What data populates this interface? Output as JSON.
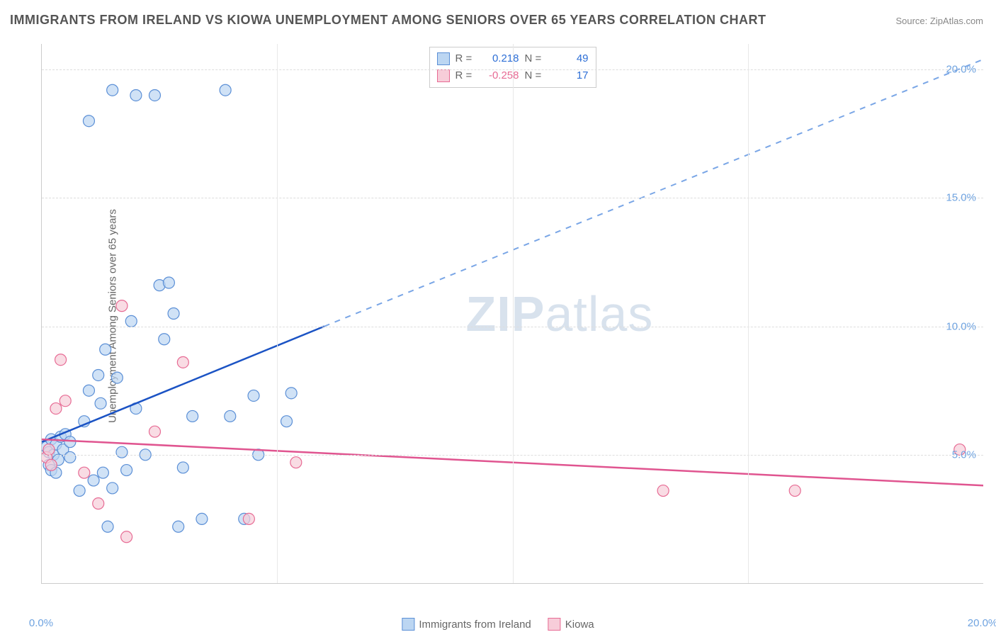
{
  "title": "IMMIGRANTS FROM IRELAND VS KIOWA UNEMPLOYMENT AMONG SENIORS OVER 65 YEARS CORRELATION CHART",
  "source": "Source: ZipAtlas.com",
  "ylabel": "Unemployment Among Seniors over 65 years",
  "watermark_bold": "ZIP",
  "watermark_rest": "atlas",
  "chart": {
    "type": "scatter",
    "xlim": [
      0,
      20
    ],
    "ylim": [
      0,
      21
    ],
    "x_ticks": [
      0.0,
      20.0
    ],
    "x_tick_labels": [
      "0.0%",
      "20.0%"
    ],
    "y_ticks": [
      5.0,
      10.0,
      15.0,
      20.0
    ],
    "y_tick_labels": [
      "5.0%",
      "10.0%",
      "15.0%",
      "20.0%"
    ],
    "v_grid_ticks": [
      5.0,
      10.0,
      15.0
    ],
    "background_color": "#ffffff",
    "grid_color": "#dddddd",
    "axis_color": "#cccccc",
    "tick_label_color": "#6fa3e0",
    "marker_radius": 8,
    "series": [
      {
        "id": "ireland",
        "label": "Immigrants from Ireland",
        "fill": "#bcd6f2",
        "stroke": "#5b8fd6",
        "r_label": "R =",
        "r_value": "0.218",
        "n_label": "N =",
        "n_value": "49",
        "r_color": "#2e6fd6",
        "n_color": "#2e6fd6",
        "trend": {
          "color": "#1b53c4",
          "dash_color": "#7aa6e6",
          "x1": 0,
          "y1": 5.5,
          "x2": 6.0,
          "y2": 10.0,
          "x3": 20.0,
          "y3": 20.4
        },
        "points": [
          {
            "x": 0.1,
            "y": 5.3
          },
          {
            "x": 0.15,
            "y": 5.1
          },
          {
            "x": 0.2,
            "y": 5.6
          },
          {
            "x": 0.25,
            "y": 5.0
          },
          {
            "x": 0.3,
            "y": 5.4
          },
          {
            "x": 0.35,
            "y": 4.8
          },
          {
            "x": 0.4,
            "y": 5.7
          },
          {
            "x": 0.15,
            "y": 4.6
          },
          {
            "x": 0.45,
            "y": 5.2
          },
          {
            "x": 0.5,
            "y": 5.8
          },
          {
            "x": 0.2,
            "y": 4.4
          },
          {
            "x": 0.6,
            "y": 5.5
          },
          {
            "x": 0.8,
            "y": 3.6
          },
          {
            "x": 0.9,
            "y": 6.3
          },
          {
            "x": 1.0,
            "y": 7.5
          },
          {
            "x": 1.1,
            "y": 4.0
          },
          {
            "x": 1.2,
            "y": 8.1
          },
          {
            "x": 1.25,
            "y": 7.0
          },
          {
            "x": 1.3,
            "y": 4.3
          },
          {
            "x": 1.35,
            "y": 9.1
          },
          {
            "x": 1.4,
            "y": 2.2
          },
          {
            "x": 1.5,
            "y": 3.7
          },
          {
            "x": 1.6,
            "y": 8.0
          },
          {
            "x": 1.7,
            "y": 5.1
          },
          {
            "x": 1.8,
            "y": 4.4
          },
          {
            "x": 1.9,
            "y": 10.2
          },
          {
            "x": 2.0,
            "y": 6.8
          },
          {
            "x": 2.2,
            "y": 5.0
          },
          {
            "x": 1.0,
            "y": 18.0
          },
          {
            "x": 1.5,
            "y": 19.2
          },
          {
            "x": 2.4,
            "y": 19.0
          },
          {
            "x": 2.5,
            "y": 11.6
          },
          {
            "x": 2.6,
            "y": 9.5
          },
          {
            "x": 2.7,
            "y": 11.7
          },
          {
            "x": 2.8,
            "y": 10.5
          },
          {
            "x": 2.9,
            "y": 2.2
          },
          {
            "x": 3.0,
            "y": 4.5
          },
          {
            "x": 3.2,
            "y": 6.5
          },
          {
            "x": 3.4,
            "y": 2.5
          },
          {
            "x": 3.9,
            "y": 19.2
          },
          {
            "x": 4.0,
            "y": 6.5
          },
          {
            "x": 4.3,
            "y": 2.5
          },
          {
            "x": 4.5,
            "y": 7.3
          },
          {
            "x": 4.6,
            "y": 5.0
          },
          {
            "x": 5.2,
            "y": 6.3
          },
          {
            "x": 5.3,
            "y": 7.4
          },
          {
            "x": 2.0,
            "y": 19.0
          },
          {
            "x": 0.6,
            "y": 4.9
          },
          {
            "x": 0.3,
            "y": 4.3
          }
        ]
      },
      {
        "id": "kiowa",
        "label": "Kiowa",
        "fill": "#f7cdd9",
        "stroke": "#e76b94",
        "r_label": "R =",
        "r_value": "-0.258",
        "n_label": "N =",
        "n_value": "17",
        "r_color": "#e76b94",
        "n_color": "#2e6fd6",
        "trend": {
          "color": "#e05590",
          "x1": 0,
          "y1": 5.6,
          "x2": 20.0,
          "y2": 3.8
        },
        "points": [
          {
            "x": 0.1,
            "y": 4.9
          },
          {
            "x": 0.15,
            "y": 5.2
          },
          {
            "x": 0.2,
            "y": 4.6
          },
          {
            "x": 0.3,
            "y": 6.8
          },
          {
            "x": 0.4,
            "y": 8.7
          },
          {
            "x": 0.5,
            "y": 7.1
          },
          {
            "x": 0.9,
            "y": 4.3
          },
          {
            "x": 1.2,
            "y": 3.1
          },
          {
            "x": 1.7,
            "y": 10.8
          },
          {
            "x": 1.8,
            "y": 1.8
          },
          {
            "x": 2.4,
            "y": 5.9
          },
          {
            "x": 3.0,
            "y": 8.6
          },
          {
            "x": 4.4,
            "y": 2.5
          },
          {
            "x": 5.4,
            "y": 4.7
          },
          {
            "x": 13.2,
            "y": 3.6
          },
          {
            "x": 16.0,
            "y": 3.6
          },
          {
            "x": 19.5,
            "y": 5.2
          }
        ]
      }
    ]
  },
  "legend_bottom": [
    {
      "swatch_fill": "#bcd6f2",
      "swatch_stroke": "#5b8fd6",
      "label": "Immigrants from Ireland"
    },
    {
      "swatch_fill": "#f7cdd9",
      "swatch_stroke": "#e76b94",
      "label": "Kiowa"
    }
  ]
}
